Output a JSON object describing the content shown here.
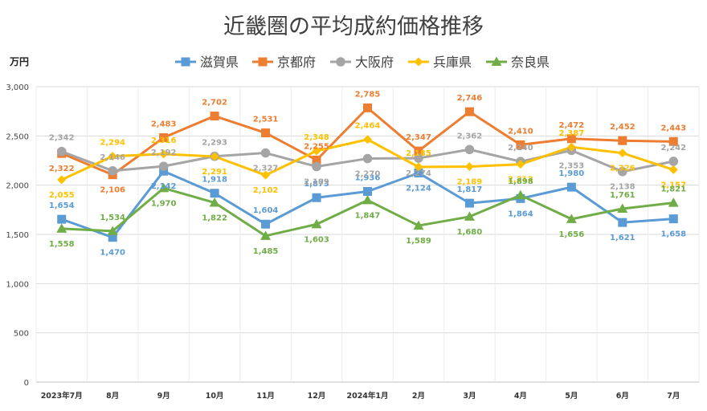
{
  "chart_data": {
    "type": "line",
    "title": "近畿圏の平均成約価格推移",
    "ylabel": "万円",
    "ylim": [
      0,
      3000
    ],
    "yticks": [
      "0",
      "500",
      "1,000",
      "1,500",
      "2,000",
      "2,500",
      "3,000"
    ],
    "grid": true,
    "legend_position": "top",
    "categories": [
      "2023年7月",
      "8月",
      "9月",
      "10月",
      "11月",
      "12月",
      "2024年1月",
      "2月",
      "3月",
      "4月",
      "5月",
      "6月",
      "7月"
    ],
    "series": [
      {
        "name": "滋賀県",
        "color": "#5B9BD5",
        "marker": "square",
        "values": [
          1654,
          1470,
          2142,
          1918,
          1604,
          1873,
          1936,
          2124,
          1817,
          1864,
          1980,
          1621,
          1658
        ],
        "labels": [
          "1,654",
          "1,470",
          "2,142",
          "1,918",
          "1,604",
          "1,873",
          "1,936",
          "2,124",
          "1,817",
          "1,864",
          "1,980",
          "1,621",
          "1,658"
        ]
      },
      {
        "name": "京都府",
        "color": "#ED7D31",
        "marker": "square",
        "values": [
          2322,
          2106,
          2483,
          2702,
          2531,
          2255,
          2785,
          2347,
          2746,
          2410,
          2472,
          2452,
          2443
        ],
        "labels": [
          "2,322",
          "2,106",
          "2,483",
          "2,702",
          "2,531",
          "2,255",
          "2,785",
          "2,347",
          "2,746",
          "2,410",
          "2,472",
          "2,452",
          "2,443"
        ]
      },
      {
        "name": "大阪府",
        "color": "#A5A5A5",
        "marker": "circle",
        "values": [
          2342,
          2146,
          2192,
          2293,
          2327,
          2189,
          2270,
          2274,
          2362,
          2240,
          2353,
          2138,
          2242
        ],
        "labels": [
          "2,342",
          "2,146",
          "2,192",
          "2,293",
          "2,327",
          "2,189",
          "2,270",
          "2,274",
          "2,362",
          "2,240",
          "2,353",
          "2,138",
          "2,242"
        ]
      },
      {
        "name": "兵庫県",
        "color": "#FFC000",
        "marker": "diamond",
        "values": [
          2055,
          2294,
          2316,
          2291,
          2102,
          2348,
          2464,
          2185,
          2189,
          2212,
          2387,
          2326,
          2157
        ],
        "labels": [
          "2,055",
          "2,294",
          "2,316",
          "2,291",
          "2,102",
          "2,348",
          "2,464",
          "2,185",
          "2,189",
          "2,212",
          "2,387",
          "2,326",
          "2,157"
        ]
      },
      {
        "name": "奈良県",
        "color": "#70AD47",
        "marker": "triangle",
        "values": [
          1558,
          1534,
          1970,
          1822,
          1485,
          1603,
          1847,
          1589,
          1680,
          1898,
          1656,
          1761,
          1821
        ],
        "labels": [
          "1,558",
          "1,534",
          "1,970",
          "1,822",
          "1,485",
          "1,603",
          "1,847",
          "1,589",
          "1,680",
          "1,898",
          "1,656",
          "1,761",
          "1,821"
        ]
      }
    ]
  }
}
